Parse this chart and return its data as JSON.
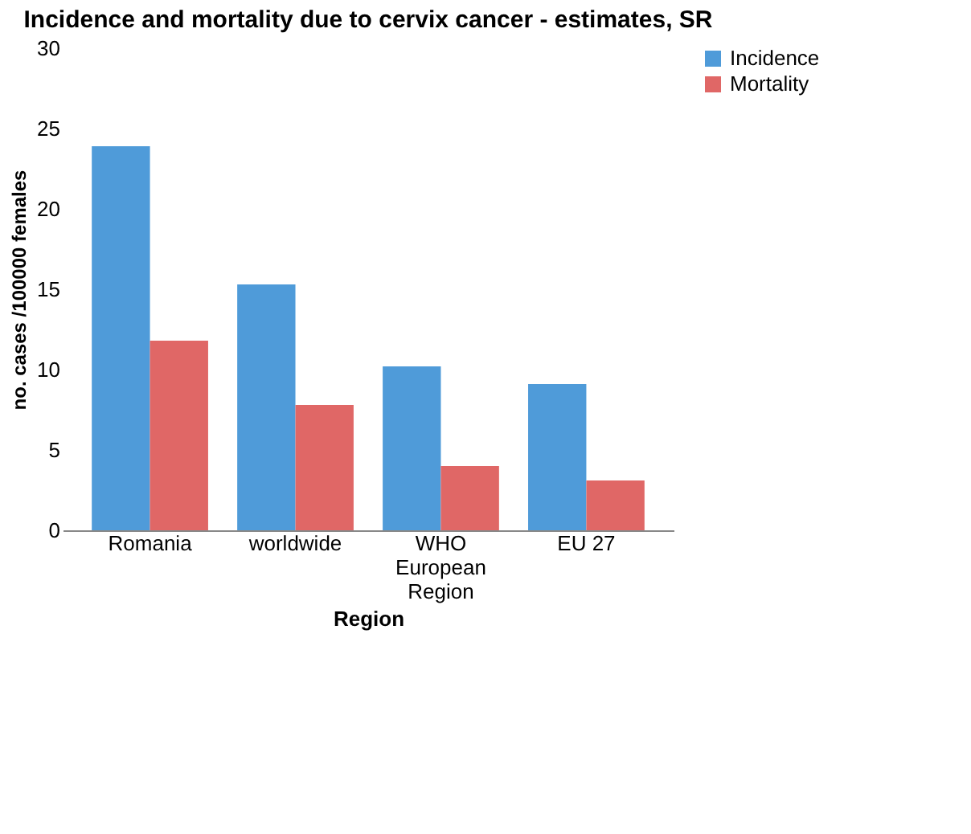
{
  "chart_data": {
    "type": "bar",
    "title": "Incidence and mortality due to cervix cancer - estimates, SR",
    "xlabel": "Region",
    "ylabel": "no. cases /100000 females",
    "categories": [
      "Romania",
      "worldwide",
      "WHO European Region",
      "EU 27"
    ],
    "series": [
      {
        "name": "Incidence",
        "color": "#4f9bd9",
        "values": [
          23.9,
          15.3,
          10.2,
          9.1
        ]
      },
      {
        "name": "Mortality",
        "color": "#e06766",
        "values": [
          11.8,
          7.8,
          4.0,
          3.1
        ]
      }
    ],
    "ylim": [
      0,
      30
    ],
    "yticks": [
      0,
      5,
      10,
      15,
      20,
      25,
      30
    ],
    "grid": false,
    "legend": "right"
  }
}
